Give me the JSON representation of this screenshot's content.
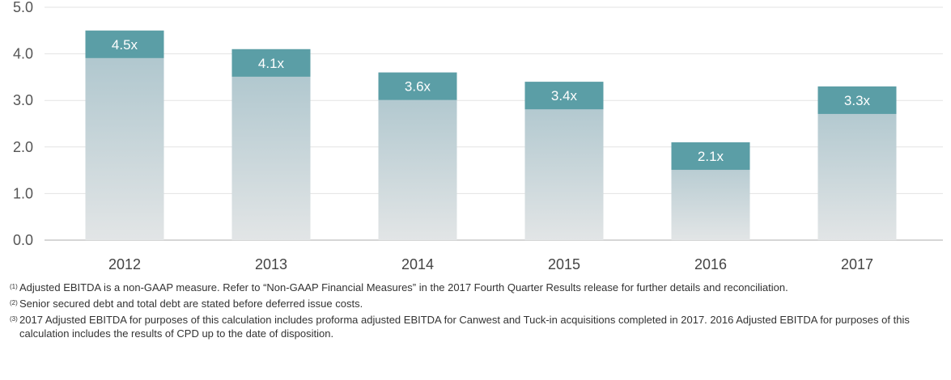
{
  "chart_data": {
    "type": "bar",
    "categories": [
      "2012",
      "2013",
      "2014",
      "2015",
      "2016",
      "2017"
    ],
    "values": [
      4.5,
      4.1,
      3.6,
      3.4,
      2.1,
      3.3
    ],
    "value_labels": [
      "4.5x",
      "4.1x",
      "3.6x",
      "3.4x",
      "2.1x",
      "3.3x"
    ],
    "yticks": [
      "0.0",
      "1.0",
      "2.0",
      "3.0",
      "4.0",
      "5.0"
    ],
    "ylim": [
      0,
      5
    ],
    "grid": true,
    "colors": {
      "label_box": "#5b9ea6",
      "bar_top": "#a9c3cb",
      "bar_bottom": "#e2e5e6",
      "grid": "#e3e3e3",
      "axis": "#c8c8c8"
    }
  },
  "footnotes": [
    {
      "mark": "(1)",
      "text": "Adjusted EBITDA is a non-GAAP measure. Refer to “Non-GAAP Financial Measures” in the 2017 Fourth Quarter Results release for further details and reconciliation."
    },
    {
      "mark": "(2)",
      "text": "Senior secured debt and total debt are stated before deferred issue costs."
    },
    {
      "mark": "(3)",
      "text": "2017 Adjusted EBITDA for purposes of this calculation includes proforma adjusted EBITDA for Canwest and Tuck-in acquisitions completed in 2017. 2016 Adjusted EBITDA for purposes of this calculation includes the results of CPD up to the date of disposition."
    }
  ]
}
